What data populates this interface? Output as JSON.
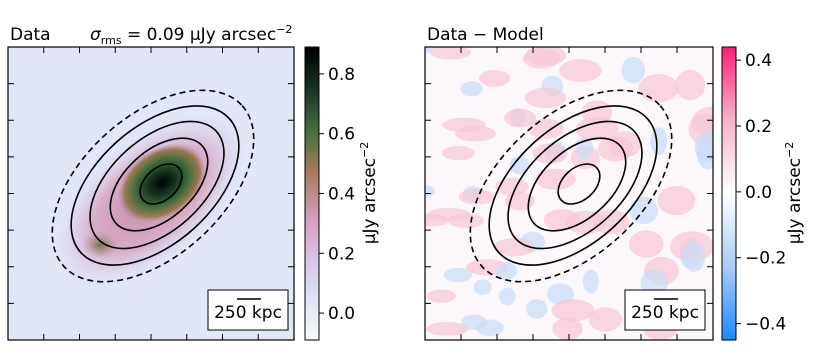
{
  "chart_data": [
    {
      "type": "image",
      "title": "Data",
      "annotation": {
        "symbol": "σ",
        "subscript": "rms",
        "text": " = 0.09 μJy arcsec",
        "superscript": "−2"
      },
      "scalebar_label": "250 kpc",
      "colorbar": {
        "lim": [
          -0.09,
          0.89
        ],
        "ticks": [
          {
            "value": 0,
            "label": "0.0"
          },
          0.2,
          0.4,
          0.6,
          0.8
        ],
        "label": {
          "text": "μJy arcsec",
          "superscript": "−2"
        },
        "colors": [
          "#f3fbf8",
          "#dde5f6",
          "#d8bfe6",
          "#d49ab9",
          "#a97b5a",
          "#45703d",
          "#163422",
          "#000000"
        ]
      }
    },
    {
      "type": "image",
      "title": "Data − Model",
      "scalebar_label": "250 kpc",
      "colorbar": {
        "lim": [
          -0.45,
          0.44
        ],
        "ticks": [
          {
            "value": -0.4,
            "label": "−0.4"
          },
          {
            "value": -0.2,
            "label": "−0.2"
          },
          {
            "value": 0,
            "label": "0.0"
          },
          0.2,
          0.4
        ],
        "label": {
          "text": "μJy arcsec",
          "superscript": "−2"
        },
        "colors": [
          "#1e88ff",
          "#a9cdf7",
          "#ffffff",
          "#f6b4c9",
          "#ff1f7a"
        ]
      }
    }
  ]
}
